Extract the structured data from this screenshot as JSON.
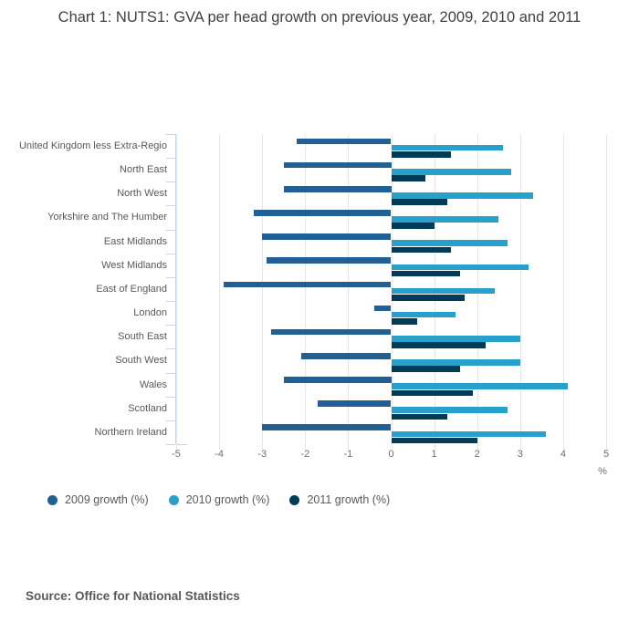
{
  "title": "Chart 1: NUTS1: GVA per head growth on previous year, 2009, 2010 and 2011",
  "source": "Source: Office for National Statistics",
  "chart_data": {
    "type": "bar",
    "orientation": "horizontal",
    "title": "Chart 1: NUTS1: GVA per head growth on previous year, 2009, 2010 and 2011",
    "categories": [
      "United Kingdom less Extra-Regio",
      "North East",
      "North West",
      "Yorkshire and The Humber",
      "East Midlands",
      "West Midlands",
      "East of England",
      "London",
      "South East",
      "South West",
      "Wales",
      "Scotland",
      "Northern Ireland"
    ],
    "series": [
      {
        "name": "2009 growth (%)",
        "color": "#206095",
        "values": [
          -2.2,
          -2.5,
          -2.5,
          -3.2,
          -3.0,
          -2.9,
          -3.9,
          -0.4,
          -2.8,
          -2.1,
          -2.5,
          -1.7,
          -3.0
        ]
      },
      {
        "name": "2010 growth (%)",
        "color": "#27A0CC",
        "values": [
          2.6,
          2.8,
          3.3,
          2.5,
          2.7,
          3.2,
          2.4,
          1.5,
          3.0,
          3.0,
          4.1,
          2.7,
          3.6
        ]
      },
      {
        "name": "2011 growth (%)",
        "color": "#003C57",
        "values": [
          1.4,
          0.8,
          1.3,
          1.0,
          1.4,
          1.6,
          1.7,
          0.6,
          2.2,
          1.6,
          1.9,
          1.3,
          2.0
        ]
      }
    ],
    "xlabel": "%",
    "x_ticks": [
      -5,
      -4,
      -3,
      -2,
      -1,
      0,
      1,
      2,
      3,
      4,
      5
    ],
    "xlim": [
      -5,
      5
    ],
    "grid": true,
    "legend_position": "bottom"
  },
  "colors": {
    "grid": "#e6e6e6",
    "axis": "#c9d6e4",
    "title_text": "#414042",
    "label_text": "#595959",
    "tick_text": "#6e6e71"
  }
}
